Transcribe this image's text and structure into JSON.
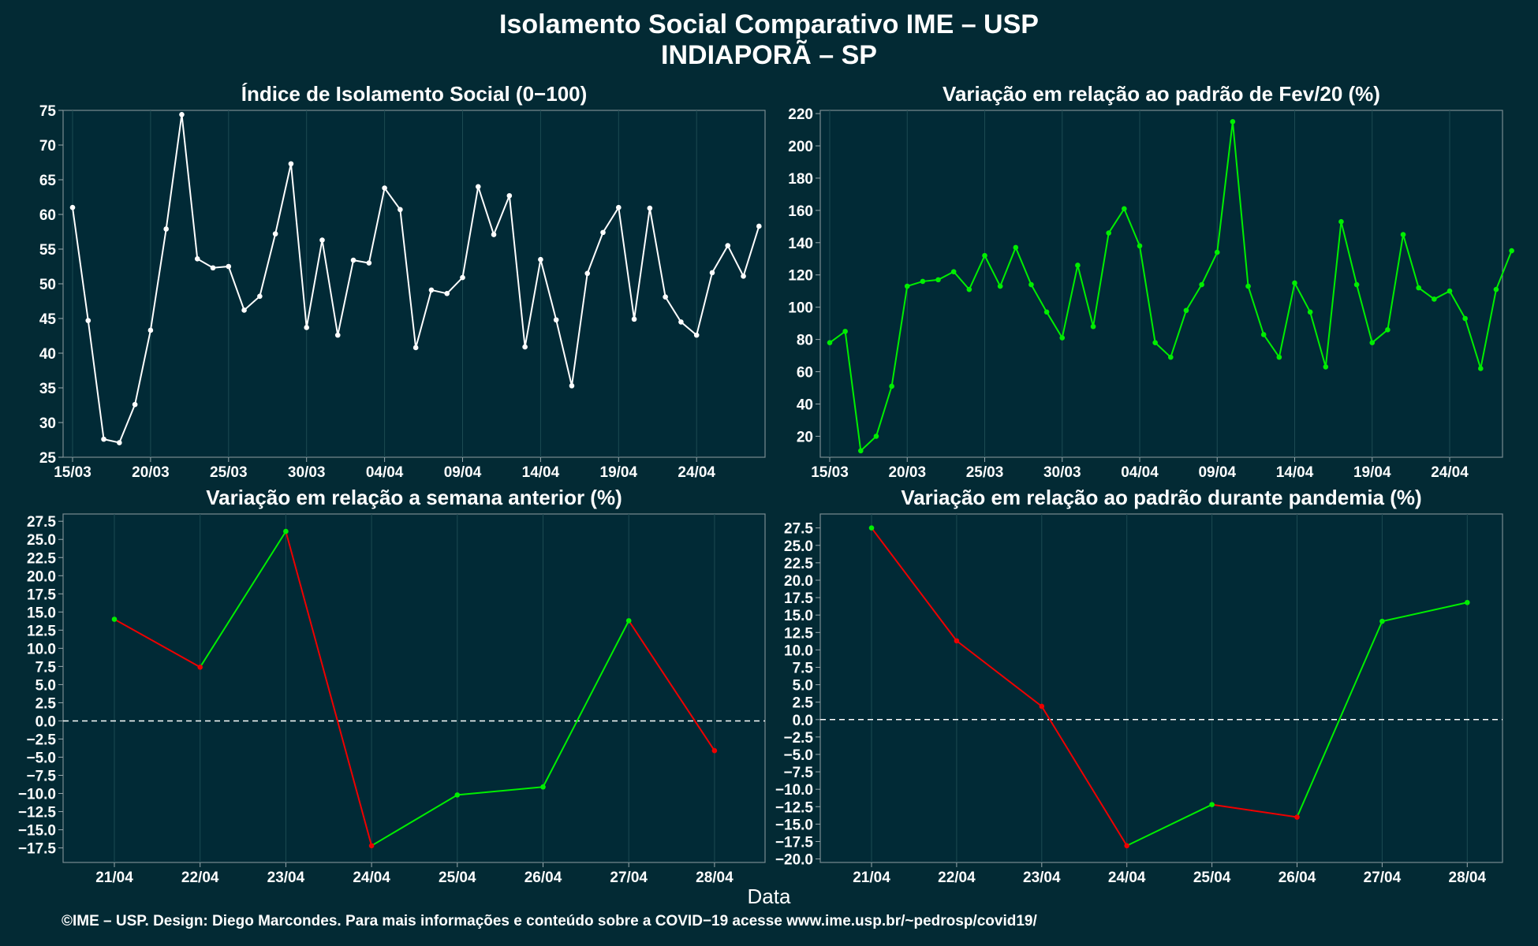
{
  "title": "Isolamento Social Comparativo IME – USP",
  "subtitle": "INDIAPORÃ – SP",
  "xlabel": "Data",
  "footer": "©IME – USP. Design: Diego Marcondes. Para mais informações e conteúdo sobre a COVID−19 acesse www.ime.usp.br/~pedrosp/covid19/",
  "colors": {
    "background": "#032a34",
    "panel": "#012a36",
    "grid": "#1c4a52",
    "white": "#ffffff",
    "green": "#00ee00",
    "red": "#ee0000"
  },
  "chart_data": [
    {
      "type": "line",
      "title": "Índice de Isolamento Social (0−100)",
      "x_start": "15/03",
      "x_ticks": [
        "15/03",
        "20/03",
        "25/03",
        "30/03",
        "04/04",
        "09/04",
        "14/04",
        "19/04",
        "24/04"
      ],
      "y_ticks": [
        "25",
        "30",
        "35",
        "40",
        "45",
        "50",
        "55",
        "60",
        "65",
        "70",
        "75"
      ],
      "ylim": [
        25,
        75
      ],
      "series": [
        {
          "color": "white",
          "values": [
            61,
            44.7,
            27.6,
            27.1,
            32.6,
            43.3,
            57.9,
            74.4,
            53.6,
            52.3,
            52.5,
            46.2,
            48.2,
            57.2,
            67.3,
            43.7,
            56.3,
            42.6,
            53.4,
            53,
            63.8,
            60.7,
            40.8,
            49.1,
            48.6,
            50.9,
            64,
            57.1,
            62.7,
            40.9,
            53.5,
            44.8,
            35.3,
            51.5,
            57.4,
            61,
            44.9,
            60.9,
            48.1,
            44.5,
            42.6,
            51.6,
            55.5,
            51.1,
            58.3
          ]
        }
      ]
    },
    {
      "type": "line",
      "title": "Variação em relação ao padrão de Fev/20 (%)",
      "x_start": "15/03",
      "x_ticks": [
        "15/03",
        "20/03",
        "25/03",
        "30/03",
        "04/04",
        "09/04",
        "14/04",
        "19/04",
        "24/04"
      ],
      "y_ticks": [
        "20",
        "40",
        "60",
        "80",
        "100",
        "120",
        "140",
        "160",
        "180",
        "200",
        "220"
      ],
      "ylim": [
        7,
        222
      ],
      "series": [
        {
          "color": "green",
          "values": [
            78,
            85,
            11,
            20,
            51,
            113,
            116,
            117,
            122,
            111,
            132,
            113,
            137,
            114,
            97,
            81,
            126,
            88,
            146,
            161,
            138,
            78,
            69,
            98,
            114,
            134,
            215,
            113,
            83,
            69,
            115,
            97,
            63,
            153,
            114,
            78,
            86,
            145,
            112,
            105,
            110,
            93,
            62,
            111,
            135
          ]
        }
      ]
    },
    {
      "type": "line",
      "title": "Variação em relação a semana anterior (%)",
      "categories": [
        "21/04",
        "22/04",
        "23/04",
        "24/04",
        "25/04",
        "26/04",
        "27/04",
        "28/04"
      ],
      "y_ticks": [
        "−17.5",
        "−15.0",
        "−12.5",
        "−10.0",
        "−7.5",
        "−5.0",
        "−2.5",
        "0.0",
        "2.5",
        "5.0",
        "7.5",
        "10.0",
        "12.5",
        "15.0",
        "17.5",
        "20.0",
        "22.5",
        "25.0",
        "27.5"
      ],
      "ylim": [
        -19.5,
        28.5
      ],
      "reference_line": 0,
      "series": [
        {
          "color_rule": "green when increasing, red when decreasing",
          "values": [
            14,
            7.4,
            26.1,
            -17.2,
            -10.2,
            -9.1,
            13.8,
            -4.1
          ]
        }
      ]
    },
    {
      "type": "line",
      "title": "Variação em relação ao padrão durante pandemia (%)",
      "categories": [
        "21/04",
        "22/04",
        "23/04",
        "24/04",
        "25/04",
        "26/04",
        "27/04",
        "28/04"
      ],
      "y_ticks": [
        "−20.0",
        "−17.5",
        "−15.0",
        "−12.5",
        "−10.0",
        "−7.5",
        "−5.0",
        "−2.5",
        "0.0",
        "2.5",
        "5.0",
        "7.5",
        "10.0",
        "12.5",
        "15.0",
        "17.5",
        "20.0",
        "22.5",
        "25.0",
        "27.5"
      ],
      "ylim": [
        -20.5,
        29.5
      ],
      "reference_line": 0,
      "series": [
        {
          "color_rule": "green when increasing, red when decreasing",
          "values": [
            27.5,
            11.3,
            1.9,
            -18.1,
            -12.2,
            -14,
            14.1,
            16.8
          ]
        }
      ]
    }
  ]
}
